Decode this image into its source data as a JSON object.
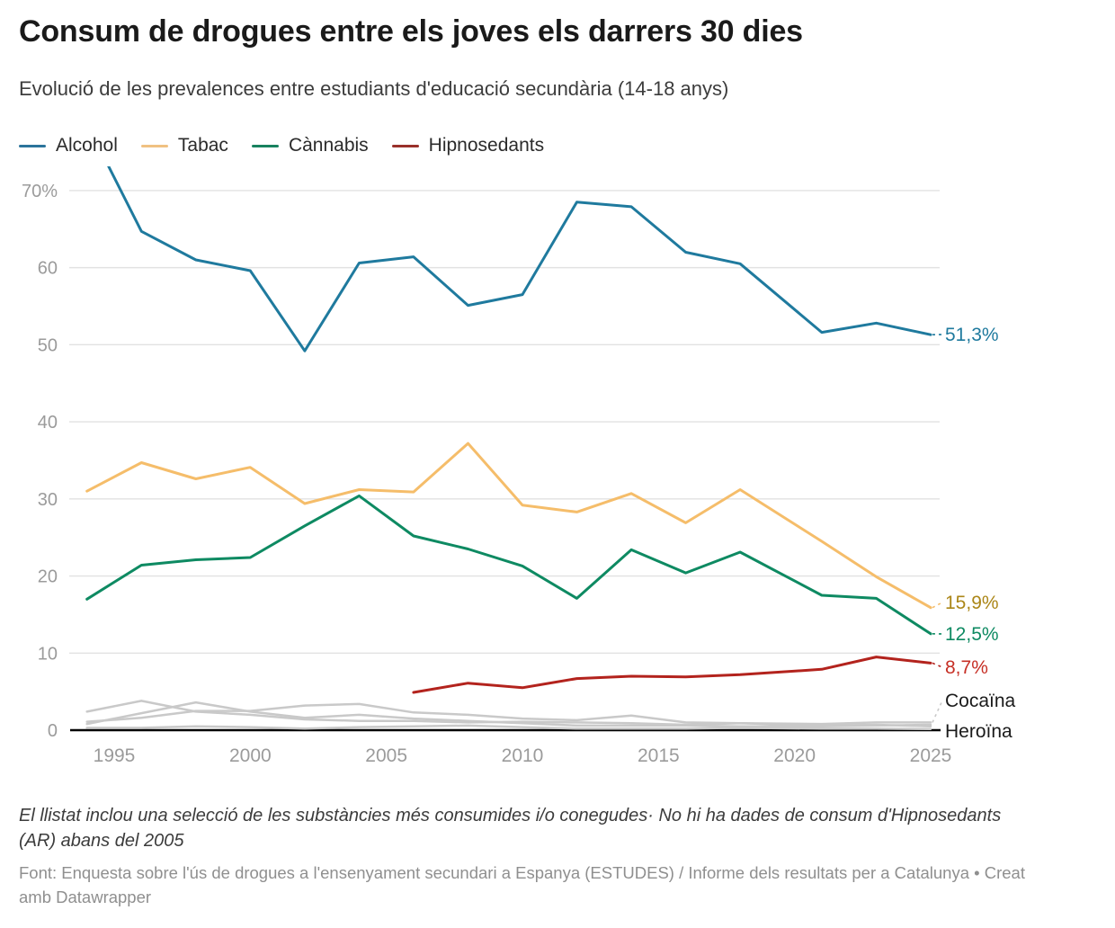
{
  "header": {
    "title": "Consum de drogues entre els joves els darrers 30 dies",
    "subtitle": "Evolució de les prevalences entre estudiants d'educació secundària (14-18 anys)"
  },
  "legend": [
    {
      "label": "Alcohol",
      "color": "#2b749b"
    },
    {
      "label": "Tabac",
      "color": "#f0c182"
    },
    {
      "label": "Cànnabis",
      "color": "#18825f",
      "accent": "à"
    },
    {
      "label": "Hipnosedants",
      "color": "#99302a"
    }
  ],
  "chart_data": {
    "type": "line",
    "title": "Consum de drogues entre els joves els darrers 30 dies",
    "xlabel": "",
    "ylabel": "",
    "xlim": [
      1993.5,
      2025.3
    ],
    "ylim": [
      0,
      73.3
    ],
    "grid": true,
    "legend_position": "top",
    "y_ticks": [
      {
        "value": 70,
        "label": "70%"
      },
      {
        "value": 60,
        "label": "60"
      },
      {
        "value": 50,
        "label": "50"
      },
      {
        "value": 40,
        "label": "40"
      },
      {
        "value": 30,
        "label": "30"
      },
      {
        "value": 20,
        "label": "20"
      },
      {
        "value": 10,
        "label": "10"
      },
      {
        "value": 0,
        "label": "0"
      }
    ],
    "x_ticks": [
      {
        "value": 1995,
        "label": "1995"
      },
      {
        "value": 2000,
        "label": "2000"
      },
      {
        "value": 2005,
        "label": "2005"
      },
      {
        "value": 2010,
        "label": "2010"
      },
      {
        "value": 2015,
        "label": "2015"
      },
      {
        "value": 2020,
        "label": "2020"
      },
      {
        "value": 2025,
        "label": "2025"
      }
    ],
    "series": [
      {
        "name": "Alcohol",
        "color": "#1f7a9e",
        "width": 3,
        "years": [
          1994,
          1996,
          1998,
          2000,
          2002,
          2004,
          2006,
          2008,
          2010,
          2012,
          2014,
          2016,
          2018,
          2021,
          2023,
          2025
        ],
        "values": [
          78.7,
          64.7,
          61.0,
          59.6,
          49.2,
          60.6,
          61.4,
          55.1,
          56.5,
          68.5,
          67.9,
          62.0,
          60.5,
          51.6,
          52.8,
          51.3
        ],
        "end_label": "51,3%",
        "end_label_color": "#1f7a9e",
        "note": "1994 value clipped above plot top"
      },
      {
        "name": "Tabac",
        "color": "#f5bd6a",
        "width": 3,
        "years": [
          1994,
          1996,
          1998,
          2000,
          2002,
          2004,
          2006,
          2008,
          2010,
          2012,
          2014,
          2016,
          2018,
          2021,
          2023,
          2025
        ],
        "values": [
          31.0,
          34.7,
          32.6,
          34.1,
          29.4,
          31.2,
          30.9,
          37.2,
          29.2,
          28.3,
          30.7,
          26.9,
          31.2,
          24.5,
          19.9,
          15.9
        ],
        "end_label": "15,9%",
        "end_label_color": "#ab8617"
      },
      {
        "name": "Cànnabis",
        "color": "#0e8a62",
        "width": 3,
        "years": [
          1994,
          1996,
          1998,
          2000,
          2002,
          2004,
          2006,
          2008,
          2010,
          2012,
          2014,
          2016,
          2018,
          2021,
          2023,
          2025
        ],
        "values": [
          17.0,
          21.4,
          22.1,
          22.4,
          26.5,
          30.4,
          25.2,
          23.5,
          21.3,
          17.1,
          23.4,
          20.4,
          23.1,
          17.5,
          17.1,
          12.5
        ],
        "end_label": "12,5%",
        "end_label_color": "#0e8a62"
      },
      {
        "name": "Hipnosedants",
        "color": "#b3231d",
        "width": 3,
        "years": [
          2006,
          2008,
          2010,
          2012,
          2014,
          2016,
          2018,
          2021,
          2023,
          2025
        ],
        "values": [
          4.9,
          6.1,
          5.5,
          6.7,
          7.0,
          6.9,
          7.2,
          7.9,
          9.5,
          8.7
        ],
        "end_label": "8,7%",
        "end_label_color": "#c62f25"
      },
      {
        "name": "Cocaïna",
        "color": "#c9c9c9",
        "width": 2.5,
        "years": [
          1994,
          1996,
          1998,
          2000,
          2002,
          2004,
          2006,
          2008,
          2010,
          2012,
          2014,
          2016,
          2018,
          2021,
          2023,
          2025
        ],
        "values": [
          1.1,
          1.6,
          2.5,
          2.5,
          3.2,
          3.4,
          2.3,
          2.0,
          1.5,
          1.3,
          1.9,
          1.0,
          0.9,
          0.8,
          1.0,
          1.0
        ],
        "end_label": "Cocaïna",
        "end_label_color": "#1a1a1a"
      },
      {
        "name": "",
        "color": "#c9c9c9",
        "width": 2.5,
        "years": [
          1994,
          1996,
          1998,
          2000,
          2002,
          2004,
          2006,
          2008,
          2010,
          2012,
          2014,
          2016,
          2018,
          2021,
          2023,
          2025
        ],
        "values": [
          2.4,
          3.8,
          2.4,
          2.0,
          1.4,
          1.2,
          1.2,
          1.0,
          1.1,
          1.0,
          0.9,
          0.7,
          0.9,
          0.6,
          0.7,
          0.5
        ],
        "end_label": null
      },
      {
        "name": "",
        "color": "#c9c9c9",
        "width": 2.5,
        "years": [
          1994,
          1996,
          1998,
          2000,
          2002,
          2004,
          2006,
          2008,
          2010,
          2012,
          2014,
          2016,
          2018,
          2021,
          2023,
          2025
        ],
        "values": [
          0.8,
          2.2,
          3.6,
          2.4,
          1.6,
          2.0,
          1.5,
          1.2,
          0.9,
          0.6,
          0.6,
          0.6,
          0.5,
          0.5,
          0.6,
          0.7
        ],
        "end_label": null
      },
      {
        "name": "Heroïna",
        "color": "#c9c9c9",
        "width": 2.5,
        "years": [
          1994,
          1996,
          1998,
          2000,
          2002,
          2004,
          2006,
          2008,
          2010,
          2012,
          2014,
          2016,
          2018,
          2021,
          2023,
          2025
        ],
        "values": [
          0.3,
          0.3,
          0.5,
          0.4,
          0.2,
          0.4,
          0.5,
          0.6,
          0.4,
          0.2,
          0.2,
          0.2,
          0.3,
          0.2,
          0.2,
          0.15
        ],
        "end_label": "Heroïna",
        "end_label_color": "#1a1a1a"
      }
    ]
  },
  "footnote": "El llistat inclou una selecció de les substàncies més consumides i/o conegudes· No hi ha dades de consum d'Hipnosedants (AR) abans del 2005",
  "source": {
    "prefix": "Font: Enquesta sobre l'ús de drogues a l'ensenyament secundari a Espanya (ESTUDES) / Informe dels resultats per a Catalunya • ",
    "attribution": "Creat amb Datawrapper"
  },
  "colors": {
    "gridline": "#e2e2e2",
    "axis": "#000000",
    "tick_label": "#9b9b9b",
    "gray_series": "#c9c9c9"
  }
}
